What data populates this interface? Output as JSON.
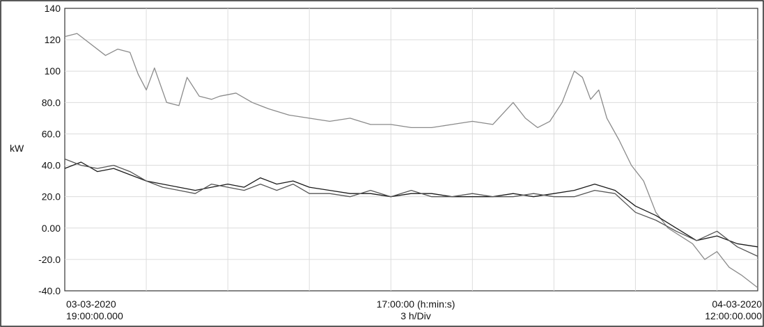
{
  "chart_data": {
    "type": "line",
    "ylabel": "kW",
    "ylim": [
      -40,
      140
    ],
    "y_ticks": [
      "140",
      "120",
      "100",
      "80.0",
      "60.0",
      "40.0",
      "20.0",
      "0.00",
      "-20.0",
      "-40.0"
    ],
    "y_tick_values": [
      140,
      120,
      100,
      80,
      60,
      40,
      20,
      0,
      -20,
      -40
    ],
    "x_axis": {
      "start_date": "03-03-2020",
      "start_time": "19:00:00.000",
      "center_label": "17:00:00 (h:min:s)",
      "division_label": "3 h/Div",
      "end_date": "04-03-2020",
      "end_time": "12:00:00.000"
    },
    "x_range_hours": [
      0,
      17
    ],
    "grid": true,
    "series": [
      {
        "color": "#8a8a8a",
        "x": [
          0,
          0.3,
          0.6,
          1.0,
          1.3,
          1.6,
          1.8,
          2.0,
          2.2,
          2.5,
          2.8,
          3.0,
          3.3,
          3.6,
          3.8,
          4.2,
          4.6,
          5.0,
          5.5,
          6.0,
          6.5,
          7.0,
          7.5,
          8.0,
          8.5,
          9.0,
          9.5,
          10.0,
          10.5,
          11.0,
          11.3,
          11.6,
          11.9,
          12.2,
          12.5,
          12.7,
          12.9,
          13.1,
          13.3,
          13.6,
          13.9,
          14.2,
          14.5,
          14.8,
          15.1,
          15.4,
          15.7,
          16.0,
          16.3,
          16.6,
          17.0
        ],
        "values": [
          122,
          124,
          118,
          110,
          114,
          112,
          98,
          88,
          102,
          80,
          78,
          96,
          84,
          82,
          84,
          86,
          80,
          76,
          72,
          70,
          68,
          70,
          66,
          66,
          64,
          64,
          66,
          68,
          66,
          80,
          70,
          64,
          68,
          80,
          100,
          96,
          82,
          88,
          70,
          56,
          40,
          30,
          10,
          0,
          -5,
          -10,
          -20,
          -15,
          -25,
          -30,
          -38
        ]
      },
      {
        "color": "#1a1a1a",
        "x": [
          0,
          0.4,
          0.8,
          1.2,
          1.6,
          2.0,
          2.4,
          2.8,
          3.2,
          3.6,
          4.0,
          4.4,
          4.8,
          5.2,
          5.6,
          6.0,
          6.5,
          7.0,
          7.5,
          8.0,
          8.5,
          9.0,
          9.5,
          10.0,
          10.5,
          11.0,
          11.5,
          12.0,
          12.5,
          13.0,
          13.5,
          14.0,
          14.5,
          15.0,
          15.5,
          16.0,
          16.5,
          17.0
        ],
        "values": [
          38,
          42,
          36,
          38,
          34,
          30,
          28,
          26,
          24,
          26,
          28,
          26,
          32,
          28,
          30,
          26,
          24,
          22,
          22,
          20,
          22,
          22,
          20,
          20,
          20,
          22,
          20,
          22,
          24,
          28,
          24,
          14,
          8,
          0,
          -8,
          -5,
          -10,
          -12
        ]
      },
      {
        "color": "#555555",
        "x": [
          0,
          0.4,
          0.8,
          1.2,
          1.6,
          2.0,
          2.4,
          2.8,
          3.2,
          3.6,
          4.0,
          4.4,
          4.8,
          5.2,
          5.6,
          6.0,
          6.5,
          7.0,
          7.5,
          8.0,
          8.5,
          9.0,
          9.5,
          10.0,
          10.5,
          11.0,
          11.5,
          12.0,
          12.5,
          13.0,
          13.5,
          14.0,
          14.5,
          15.0,
          15.5,
          16.0,
          16.5,
          17.0
        ],
        "values": [
          44,
          40,
          38,
          40,
          36,
          30,
          26,
          24,
          22,
          28,
          26,
          24,
          28,
          24,
          28,
          22,
          22,
          20,
          24,
          20,
          24,
          20,
          20,
          22,
          20,
          20,
          22,
          20,
          20,
          24,
          22,
          10,
          5,
          -2,
          -8,
          -2,
          -12,
          -18
        ]
      }
    ]
  }
}
